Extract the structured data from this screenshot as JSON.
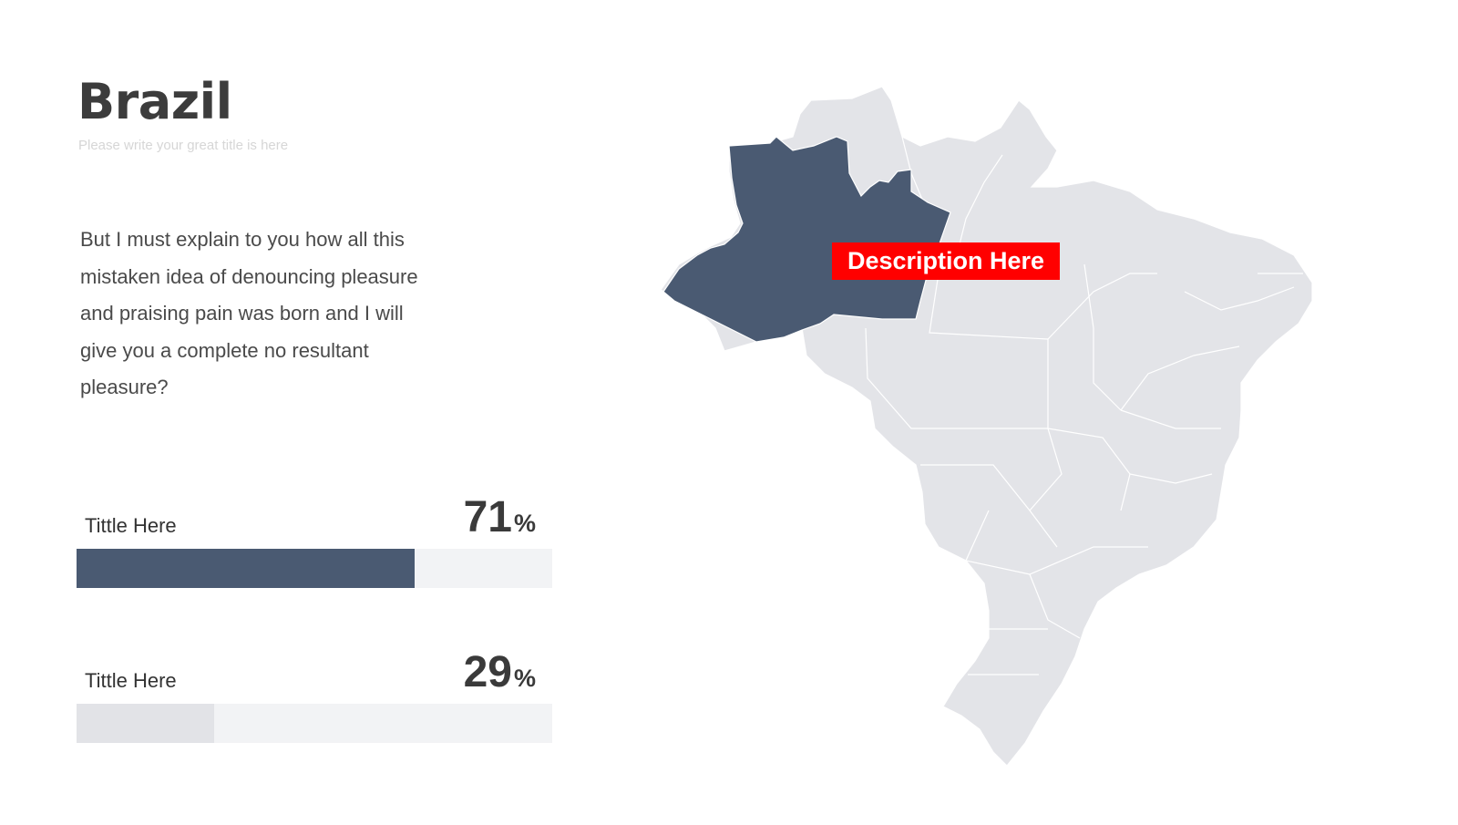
{
  "header": {
    "title": "Brazil",
    "subtitle": "Please write your great title is here"
  },
  "body": {
    "paragraph": "But I must explain to you how all this mistaken idea of denouncing pleasure and praising pain was born and I will give you a complete no resultant pleasure?"
  },
  "stats": [
    {
      "title": "Tittle Here",
      "value": "71",
      "unit": "%",
      "fraction": 0.71,
      "color": "#4a5a72"
    },
    {
      "title": "Tittle Here",
      "value": "29",
      "unit": "%",
      "fraction": 0.29,
      "color": "#e2e3e7"
    }
  ],
  "map": {
    "country": "Brazil",
    "highlighted_region": "Amazonas",
    "highlight_color": "#4a5a72",
    "base_color": "#e3e4e8",
    "callout": {
      "text": "Description Here",
      "color": "#ff0000"
    }
  }
}
